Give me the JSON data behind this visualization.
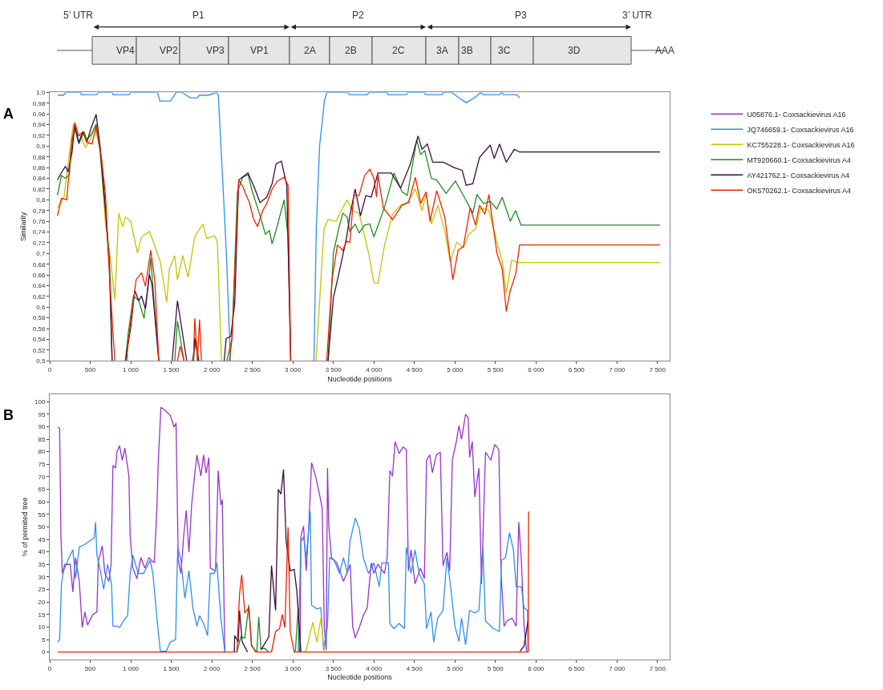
{
  "chart_data": [
    {
      "type": "other",
      "annotations": [
        "5’ UTR",
        "P1",
        "P2",
        "P3",
        "3’ UTR",
        "VP4",
        "VP2",
        "VP3",
        "VP1",
        "2A",
        "2B",
        "2C",
        "3A",
        "3B",
        "3C",
        "3D",
        "AAA"
      ]
    },
    {
      "type": "line",
      "title": "A",
      "xlabel": "Nucleotide positions",
      "ylabel": "Similarity",
      "grid": false,
      "xlim": [
        0,
        7650
      ],
      "ylim": [
        0.5,
        1.0
      ],
      "xticks": [
        0,
        500,
        {
          "value": 1000,
          "label": "1 000"
        },
        {
          "value": 1500,
          "label": "1 500"
        },
        {
          "value": 2000,
          "label": "2 000"
        },
        {
          "value": 2500,
          "label": "2 500"
        },
        {
          "value": 3000,
          "label": "3 000"
        },
        {
          "value": 3500,
          "label": "3 500"
        },
        {
          "value": 4000,
          "label": "4 000"
        },
        {
          "value": 4500,
          "label": "4 500"
        },
        {
          "value": 5000,
          "label": "5 000"
        },
        {
          "value": 5500,
          "label": "5 500"
        },
        {
          "value": 6000,
          "label": "6 000"
        },
        {
          "value": 6500,
          "label": "6 500"
        },
        {
          "value": 7000,
          "label": "7 000"
        },
        {
          "value": 7500,
          "label": "7 500"
        }
      ],
      "yticks": [
        {
          "value": 0.5,
          "label": "0,5"
        },
        {
          "value": 0.52,
          "label": "0,52"
        },
        {
          "value": 0.54,
          "label": "0,54"
        },
        {
          "value": 0.56,
          "label": "0,56"
        },
        {
          "value": 0.58,
          "label": "0,58"
        },
        {
          "value": 0.6,
          "label": "0,6"
        },
        {
          "value": 0.62,
          "label": "0,62"
        },
        {
          "value": 0.64,
          "label": "0,64"
        },
        {
          "value": 0.66,
          "label": "0,66"
        },
        {
          "value": 0.68,
          "label": "0,68"
        },
        {
          "value": 0.7,
          "label": "0,7"
        },
        {
          "value": 0.72,
          "label": "0,72"
        },
        {
          "value": 0.74,
          "label": "0,74"
        },
        {
          "value": 0.76,
          "label": "0,76"
        },
        {
          "value": 0.78,
          "label": "0,78"
        },
        {
          "value": 0.8,
          "label": "0,8"
        },
        {
          "value": 0.82,
          "label": "0,82"
        },
        {
          "value": 0.84,
          "label": "0,84"
        },
        {
          "value": 0.86,
          "label": "0,86"
        },
        {
          "value": 0.88,
          "label": "0,88"
        },
        {
          "value": 0.9,
          "label": "0,9"
        },
        {
          "value": 0.92,
          "label": "0,92"
        },
        {
          "value": 0.94,
          "label": "0,94"
        },
        {
          "value": 0.96,
          "label": "0,96"
        },
        {
          "value": 0.98,
          "label": "0,98"
        },
        {
          "value": 1.0,
          "label": "1,0"
        }
      ],
      "series": [
        {
          "color": "#2e8ff0",
          "x": [
            100,
            170,
            200,
            380,
            390,
            580,
            600,
            770,
            780,
            980,
            1000,
            1330,
            1360,
            1490,
            1560,
            1640,
            1680,
            1740,
            1820,
            1850,
            1960,
            2060,
            2080,
            2130,
            2180,
            2230,
            2700,
            3260,
            3290,
            3330,
            3390,
            3420,
            3680,
            3700,
            3920,
            3940,
            4160,
            4180,
            4400,
            4420,
            4620,
            4640,
            4840,
            4860,
            4960,
            5050,
            5140,
            5240,
            5320,
            5350,
            5550,
            5580,
            5600,
            5760,
            5800
          ],
          "values": [
            0.995,
            0.995,
            1.0,
            1.0,
            0.996,
            0.996,
            1.0,
            1.0,
            0.996,
            0.996,
            1.0,
            1.0,
            0.984,
            0.984,
            1.0,
            1.0,
            0.995,
            0.99,
            0.99,
            0.995,
            0.995,
            1.0,
            0.995,
            0.85,
            0.7,
            0.5,
            null,
            0.5,
            0.75,
            0.9,
            0.985,
            1.0,
            1.0,
            0.996,
            0.996,
            1.0,
            1.0,
            0.996,
            0.996,
            1.0,
            1.0,
            0.996,
            0.996,
            1.0,
            1.0,
            0.99,
            0.981,
            0.99,
            1.0,
            0.996,
            0.996,
            1.0,
            0.996,
            0.996,
            0.99
          ]
        },
        {
          "color": "#c4c400",
          "x": [
            95,
            177,
            260,
            292,
            342,
            391,
            441,
            507,
            556,
            622,
            688,
            753,
            803,
            852,
            902,
            934,
            1000,
            1082,
            1132,
            1230,
            1280,
            1362,
            1444,
            1477,
            1543,
            1576,
            1642,
            1708,
            1790,
            1889,
            1938,
            2036,
            2069,
            2119,
            2700,
            3286,
            3385,
            3435,
            3533,
            3632,
            3670,
            3736,
            3818,
            3934,
            4000,
            4050,
            4132,
            4231,
            4330,
            4413,
            4512,
            4594,
            4644,
            4710,
            4792,
            4875,
            4941,
            5023,
            5105,
            5172,
            5254,
            5320,
            5419,
            5518,
            5584,
            5634,
            5700,
            5766,
            7531
          ],
          "values": [
            0.785,
            0.805,
            0.907,
            0.941,
            0.922,
            0.917,
            0.897,
            0.914,
            0.937,
            0.894,
            0.755,
            0.686,
            0.614,
            0.775,
            0.75,
            0.768,
            0.76,
            0.701,
            0.731,
            0.741,
            0.721,
            0.686,
            0.609,
            0.671,
            0.696,
            0.651,
            0.696,
            0.656,
            0.731,
            0.755,
            0.728,
            0.733,
            0.721,
            0.5,
            null,
            0.5,
            0.746,
            0.763,
            0.76,
            0.79,
            0.8,
            0.78,
            0.775,
            0.701,
            0.646,
            0.644,
            0.716,
            0.773,
            0.79,
            0.795,
            0.82,
            0.78,
            0.81,
            0.755,
            0.79,
            0.741,
            0.686,
            0.721,
            0.711,
            0.736,
            0.746,
            0.785,
            0.78,
            0.721,
            0.688,
            0.626,
            0.688,
            0.683,
            0.683
          ]
        },
        {
          "color": "#1f8c1f",
          "x": [
            95,
            145,
            194,
            243,
            276,
            309,
            359,
            424,
            458,
            523,
            573,
            622,
            688,
            737,
            770,
            850,
            934,
            967,
            1033,
            1099,
            1164,
            1214,
            1247,
            1296,
            1346,
            1450,
            1543,
            1576,
            1658,
            1700,
            1757,
            1806,
            1839,
            2000,
            2185,
            2250,
            2316,
            2382,
            2447,
            2497,
            2596,
            2661,
            2711,
            2744,
            2793,
            2892,
            2941,
            2974,
            3200,
            3435,
            3500,
            3566,
            3616,
            3670,
            3703,
            3769,
            3818,
            3885,
            3950,
            4000,
            4066,
            4149,
            4248,
            4347,
            4413,
            4528,
            4578,
            4627,
            4710,
            4776,
            4891,
            5006,
            5105,
            5221,
            5271,
            5353,
            5436,
            5518,
            5584,
            5683,
            5749,
            5815,
            7531
          ],
          "values": [
            0.808,
            0.845,
            0.84,
            0.847,
            0.914,
            0.932,
            0.904,
            0.927,
            0.912,
            0.924,
            0.941,
            0.889,
            0.775,
            0.691,
            0.5,
            null,
            0.5,
            0.55,
            0.621,
            0.612,
            0.579,
            0.641,
            0.691,
            0.592,
            0.5,
            null,
            0.5,
            0.574,
            0.5,
            null,
            0.5,
            0.537,
            0.5,
            null,
            0.5,
            0.542,
            0.815,
            0.842,
            0.847,
            0.817,
            0.77,
            0.736,
            0.743,
            0.718,
            0.743,
            0.8,
            0.731,
            0.5,
            null,
            0.5,
            0.701,
            0.746,
            0.775,
            0.768,
            0.741,
            0.755,
            0.738,
            0.753,
            0.755,
            0.731,
            0.758,
            0.795,
            0.85,
            0.815,
            0.808,
            0.912,
            0.884,
            0.892,
            0.84,
            0.837,
            0.812,
            0.835,
            0.808,
            0.775,
            0.81,
            0.793,
            0.797,
            0.783,
            0.805,
            0.76,
            0.78,
            0.753,
            0.753
          ]
        },
        {
          "color": "#3d0a3d",
          "x": [
            95,
            161,
            194,
            227,
            276,
            309,
            359,
            408,
            458,
            507,
            573,
            622,
            688,
            737,
            770,
            850,
            934,
            1000,
            1049,
            1099,
            1132,
            1181,
            1230,
            1263,
            1346,
            1430,
            1510,
            1576,
            1691,
            1740,
            1775,
            1790,
            1839,
            2000,
            2152,
            2178,
            2234,
            2283,
            2332,
            2447,
            2514,
            2596,
            2678,
            2744,
            2793,
            2859,
            2925,
            2974,
            3200,
            3435,
            3500,
            3566,
            3665,
            3703,
            3769,
            3835,
            3901,
            3967,
            4050,
            4215,
            4330,
            4446,
            4545,
            4594,
            4660,
            4726,
            4858,
            4990,
            5089,
            5139,
            5221,
            5304,
            5436,
            5485,
            5551,
            5634,
            5733,
            5799,
            7531
          ],
          "values": [
            0.837,
            0.855,
            0.862,
            0.852,
            0.889,
            0.939,
            0.907,
            0.927,
            0.907,
            0.932,
            0.959,
            0.899,
            0.785,
            0.671,
            0.5,
            null,
            0.5,
            0.562,
            0.631,
            0.612,
            0.621,
            0.597,
            0.661,
            0.641,
            0.5,
            null,
            0.5,
            0.612,
            0.5,
            null,
            0.5,
            0.542,
            0.5,
            null,
            0.5,
            0.542,
            0.545,
            0.607,
            0.837,
            0.85,
            0.827,
            0.795,
            0.805,
            0.83,
            0.867,
            0.872,
            0.827,
            0.5,
            null,
            0.5,
            0.617,
            0.661,
            0.731,
            0.77,
            0.82,
            0.77,
            0.808,
            0.805,
            0.85,
            0.85,
            0.822,
            0.865,
            0.919,
            0.894,
            0.904,
            0.87,
            0.87,
            0.86,
            0.855,
            0.827,
            0.83,
            0.879,
            0.902,
            0.877,
            0.904,
            0.87,
            0.894,
            0.889,
            0.889
          ]
        },
        {
          "color": "#ee2200",
          "x": [
            95,
            145,
            210,
            260,
            309,
            359,
            408,
            458,
            523,
            573,
            638,
            688,
            737,
            803,
            880,
            951,
            967,
            1066,
            1132,
            1181,
            1247,
            1296,
            1346,
            1450,
            1576,
            1609,
            1658,
            1720,
            1773,
            1790,
            1823,
            1849,
            1872,
            2050,
            2217,
            2250,
            2332,
            2382,
            2415,
            2464,
            2514,
            2563,
            2629,
            2678,
            2744,
            2810,
            2892,
            2941,
            2974,
            3200,
            3418,
            3484,
            3550,
            3616,
            3665,
            3703,
            3752,
            3818,
            3885,
            3950,
            4000,
            4033,
            4050,
            4116,
            4231,
            4347,
            4429,
            4512,
            4578,
            4644,
            4693,
            4776,
            4875,
            4941,
            4974,
            5040,
            5105,
            5188,
            5254,
            5304,
            5370,
            5419,
            5518,
            5584,
            5634,
            5683,
            5749,
            5799,
            7531
          ],
          "values": [
            0.77,
            0.803,
            0.8,
            0.889,
            0.944,
            0.919,
            0.927,
            0.907,
            0.904,
            0.937,
            0.879,
            0.81,
            0.661,
            0.5,
            null,
            0.5,
            0.535,
            0.651,
            0.664,
            0.639,
            0.706,
            0.651,
            0.5,
            null,
            0.5,
            0.527,
            0.5,
            null,
            0.5,
            0.579,
            0.5,
            0.577,
            0.5,
            null,
            0.5,
            0.542,
            0.837,
            0.825,
            0.812,
            0.795,
            0.765,
            0.75,
            0.78,
            0.793,
            0.82,
            0.835,
            0.842,
            0.827,
            0.5,
            null,
            0.5,
            0.651,
            0.716,
            0.706,
            0.723,
            0.721,
            0.808,
            0.808,
            0.845,
            0.857,
            0.84,
            0.805,
            0.847,
            0.785,
            0.763,
            0.79,
            0.795,
            0.842,
            0.793,
            0.815,
            0.76,
            0.817,
            0.768,
            0.691,
            0.651,
            0.706,
            0.713,
            0.785,
            0.753,
            0.79,
            0.773,
            0.81,
            0.701,
            0.671,
            0.592,
            0.631,
            0.661,
            0.716,
            0.716
          ]
        }
      ]
    },
    {
      "type": "line",
      "title": "B",
      "xlabel": "Nucleotide positions",
      "ylabel": "% of permited tree",
      "legend": "right",
      "grid": false,
      "xlim": [
        0,
        7650
      ],
      "ylim": [
        -3,
        103
      ],
      "xticks": [
        0,
        500,
        {
          "value": 1000,
          "label": "1 000"
        },
        {
          "value": 1500,
          "label": "1 500"
        },
        {
          "value": 2000,
          "label": "2 000"
        },
        {
          "value": 2500,
          "label": "2 500"
        },
        {
          "value": 3000,
          "label": "3 000"
        },
        {
          "value": 3500,
          "label": "3 500"
        },
        {
          "value": 4000,
          "label": "4 000"
        },
        {
          "value": 4500,
          "label": "4 500"
        },
        {
          "value": 5000,
          "label": "5 000"
        },
        {
          "value": 5500,
          "label": "5 500"
        },
        {
          "value": 6000,
          "label": "6 000"
        },
        {
          "value": 6500,
          "label": "6 500"
        },
        {
          "value": 7000,
          "label": "7 000"
        },
        {
          "value": 7500,
          "label": "7 500"
        }
      ],
      "yticks": [
        0,
        5,
        10,
        15,
        20,
        25,
        30,
        35,
        40,
        45,
        50,
        55,
        60,
        65,
        70,
        75,
        80,
        85,
        90,
        95,
        100
      ],
      "series": [
        {
          "name": "U05876.1- Coxsackievirus A16",
          "color": "#9933cc",
          "x": [
            99,
            122,
            138,
            155,
            187,
            253,
            286,
            319,
            365,
            401,
            434,
            467,
            533,
            582,
            599,
            648,
            681,
            730,
            757,
            780,
            813,
            829,
            862,
            895,
            928,
            977,
            993,
            1026,
            1076,
            1125,
            1174,
            1224,
            1290,
            1323,
            1339,
            1372,
            1421,
            1487,
            1536,
            1559,
            1586,
            1619,
            1652,
            1685,
            1718,
            1751,
            1784,
            1816,
            1866,
            1898,
            1931,
            1964,
            1981,
            2046,
            2079,
            2112,
            2129,
            2161,
            2600,
            3090,
            3099,
            3132,
            3165,
            3198,
            3231,
            3280,
            3329,
            3362,
            3388,
            3411,
            3428,
            3444,
            3477,
            3543,
            3625,
            3708,
            3738,
            3770,
            3820,
            3869,
            3918,
            3967,
            4000,
            4049,
            4131,
            4164,
            4197,
            4230,
            4262,
            4312,
            4361,
            4400,
            4426,
            4459,
            4508,
            4574,
            4623,
            4650,
            4689,
            4722,
            4771,
            4820,
            4853,
            4902,
            4935,
            4968,
            5017,
            5050,
            5082,
            5132,
            5164,
            5181,
            5214,
            5246,
            5296,
            5328,
            5378,
            5443,
            5492,
            5542,
            5568,
            5607,
            5640,
            5706,
            5755,
            5788,
            5820,
            5853,
            5886
          ],
          "values": [
            89.8,
            89.3,
            47,
            31.4,
            35,
            35,
            24,
            37.7,
            28.2,
            9.8,
            16,
            10.8,
            15,
            16,
            36,
            42.4,
            31.4,
            28.2,
            35,
            74.5,
            73.5,
            79.8,
            82.4,
            76.6,
            81.4,
            70.3,
            46,
            33.5,
            29.3,
            37.7,
            33.5,
            37.7,
            35.6,
            57.7,
            75.6,
            97.7,
            96.6,
            94.5,
            89.8,
            91.4,
            36.6,
            31.4,
            46,
            56.6,
            39.8,
            58.7,
            69.3,
            78.7,
            70.3,
            78.7,
            71.4,
            77.7,
            33.5,
            32.4,
            72.4,
            58.7,
            60.8,
            0,
            null,
            0,
            46,
            50.3,
            32.4,
            50.8,
            75.6,
            70.3,
            62.9,
            57.7,
            10.3,
            0.8,
            73.5,
            50.3,
            37.7,
            35.6,
            28.2,
            35,
            10.3,
            5.6,
            9.8,
            14.5,
            17.7,
            35.6,
            31.4,
            35,
            31.4,
            37.7,
            72.4,
            70.3,
            84,
            79.3,
            81.9,
            80.8,
            32.4,
            40.8,
            27.2,
            33.5,
            29.3,
            76.6,
            78.7,
            71.6,
            78.7,
            79.8,
            34.5,
            39.8,
            32.4,
            76.6,
            84,
            90.3,
            85,
            95,
            93.5,
            77.7,
            84,
            61.9,
            73.5,
            27.2,
            79.8,
            76.6,
            82.9,
            80.8,
            32.4,
            10.3,
            12.4,
            13.5,
            10.3,
            51.9,
            36.6,
            10.3,
            0
          ]
        },
        {
          "name": "JQ746659.1- Coxsackievirus A16",
          "color": "#2e8ff0",
          "x": [
            99,
            122,
            145,
            171,
            237,
            286,
            319,
            365,
            434,
            500,
            549,
            566,
            582,
            632,
            665,
            714,
            763,
            780,
            829,
            862,
            911,
            961,
            993,
            1026,
            1092,
            1158,
            1240,
            1273,
            1323,
            1365,
            1438,
            1487,
            1553,
            1579,
            1619,
            1668,
            1718,
            1767,
            1816,
            1849,
            1898,
            1948,
            1981,
            2030,
            2063,
            2112,
            2161,
            2600,
            3066,
            3099,
            3132,
            3165,
            3215,
            3231,
            3297,
            3346,
            3379,
            3428,
            3454,
            3510,
            3576,
            3625,
            3674,
            3705,
            3770,
            3820,
            3869,
            3934,
            4000,
            4066,
            4098,
            4180,
            4197,
            4246,
            4312,
            4377,
            4400,
            4459,
            4508,
            4558,
            4623,
            4650,
            4705,
            4738,
            4787,
            4853,
            4902,
            4951,
            5000,
            5050,
            5082,
            5132,
            5181,
            5246,
            5296,
            5345,
            5378,
            5476,
            5549,
            5574,
            5624,
            5673,
            5722,
            5755,
            5820,
            5853,
            5896,
            5902
          ],
          "values": [
            4,
            5,
            27.2,
            32.4,
            37.7,
            40.8,
            29.3,
            41.9,
            43,
            44.5,
            45.6,
            51.9,
            38.7,
            31.4,
            25,
            35,
            27.2,
            10.3,
            10.3,
            9.8,
            12.4,
            14.5,
            31.4,
            38.7,
            31.4,
            31.4,
            36.6,
            31.4,
            13.5,
            0.3,
            0.3,
            4,
            5,
            41.9,
            36.6,
            21.4,
            32.4,
            17.7,
            10.3,
            14.5,
            11.4,
            6.6,
            31.4,
            31.4,
            35.6,
            13.5,
            0,
            null,
            0,
            44,
            46,
            37.7,
            56.1,
            18.7,
            17.2,
            17.7,
            0.8,
            10.3,
            37.7,
            36.6,
            31.4,
            37.7,
            31.4,
            44,
            53.5,
            49.3,
            37.7,
            31.4,
            35.6,
            26.1,
            35.6,
            35.6,
            11.4,
            9.3,
            11.4,
            9.3,
            41.9,
            31.4,
            40.8,
            31.4,
            27.2,
            9.3,
            16,
            4,
            13.5,
            16.6,
            37.7,
            25,
            10.3,
            4.2,
            13.5,
            2.9,
            16.6,
            15.6,
            16.6,
            41.9,
            12.4,
            9.3,
            8.2,
            36.6,
            37.7,
            47.7,
            40.8,
            26.1,
            26.1,
            17.7,
            16.6,
            0
          ]
        },
        {
          "name": "KC755228.1- Coxsackievirus A16",
          "color": "#c4c400",
          "x": [
            3150,
            3165,
            3247,
            3297,
            3346,
            3388
          ],
          "values": [
            0,
            0.8,
            11.9,
            4,
            13.5,
            0.3
          ]
        },
        {
          "name": "MT920660.1- Coxsackievirus A4",
          "color": "#1f8c1f",
          "x": [
            2310,
            2359,
            2408,
            2457,
            2490,
            2556,
            2579,
            2606,
            2655,
            2704,
            2850,
            3020,
            3033,
            3066,
            3082
          ],
          "values": [
            0,
            6.1,
            5.6,
            18.7,
            2.4,
            0,
            14,
            1.4,
            1.4,
            0,
            null,
            0,
            0.8,
            17.7,
            0
          ]
        },
        {
          "name": "AY421762.1- Coxsackievirus A4",
          "color": "#3d0a3d",
          "x": [
            2277,
            2283,
            2326,
            2342,
            2375,
            2441,
            2520,
            2606,
            2704,
            2737,
            2787,
            2820,
            2853,
            2885,
            2918,
            2968,
            3017,
            3050,
            3082,
            3099,
            4500,
            5804,
            5853,
            5902
          ],
          "values": [
            0,
            6.6,
            4,
            16.6,
            4,
            0,
            null,
            0.8,
            6.1,
            34.5,
            16.6,
            65,
            63,
            72.9,
            44,
            32.4,
            33,
            24,
            8.7,
            0,
            null,
            0.3,
            2.4,
            12.4
          ]
        },
        {
          "name": "OK570262.1- Coxsackievirus A4",
          "color": "#ee2200",
          "x": [
            99,
            2310,
            2342,
            2369,
            2408,
            2457,
            2490,
            2540,
            2737,
            2787,
            2836,
            2869,
            2902,
            2941,
            2968,
            3017,
            5905,
            5909
          ],
          "values": [
            0,
            0,
            23,
            30.8,
            15.6,
            17.7,
            2.9,
            0,
            0,
            8.2,
            9.3,
            15,
            9.8,
            49.8,
            8.2,
            0,
            0,
            56.1
          ]
        }
      ]
    }
  ]
}
